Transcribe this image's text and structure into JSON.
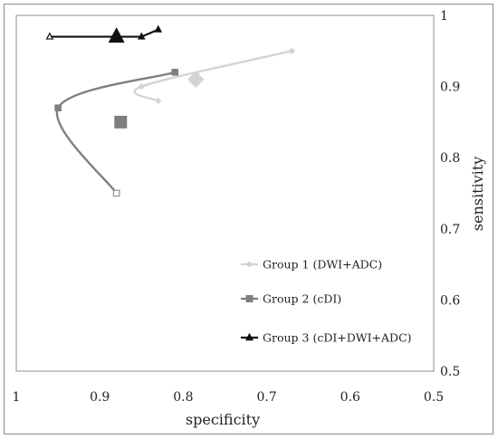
{
  "chart_data": {
    "type": "line",
    "xlabel": "specificity",
    "ylabel": "sensitivity",
    "x_reversed": true,
    "xlim": [
      0.5,
      1
    ],
    "ylim": [
      0.5,
      1
    ],
    "x_ticks": [
      "1",
      "0.9",
      "0.8",
      "0.7",
      "0.6",
      "0.5"
    ],
    "y_ticks": [
      "0.5",
      "0.6",
      "0.7",
      "0.8",
      "0.9",
      "1"
    ],
    "legend_position": "lower-right",
    "series": [
      {
        "name": "Group 1 (DWI+ADC)",
        "color": "#d4d4d4",
        "marker": "diamond",
        "x": [
          0.83,
          0.85,
          0.67
        ],
        "y": [
          0.88,
          0.9,
          0.95
        ],
        "summary_point": {
          "x": 0.785,
          "y": 0.91
        }
      },
      {
        "name": "Group 2 (cDI)",
        "color": "#7f7f7f",
        "marker": "square",
        "x": [
          0.88,
          0.95,
          0.81
        ],
        "y": [
          0.75,
          0.87,
          0.92
        ],
        "summary_point": {
          "x": 0.875,
          "y": 0.85
        }
      },
      {
        "name": "Group 3 (cDI+DWI+ADC)",
        "color": "#111111",
        "marker": "triangle",
        "x": [
          0.96,
          0.85,
          0.83
        ],
        "y": [
          0.97,
          0.97,
          0.98
        ],
        "summary_point": {
          "x": 0.88,
          "y": 0.97
        }
      }
    ]
  }
}
